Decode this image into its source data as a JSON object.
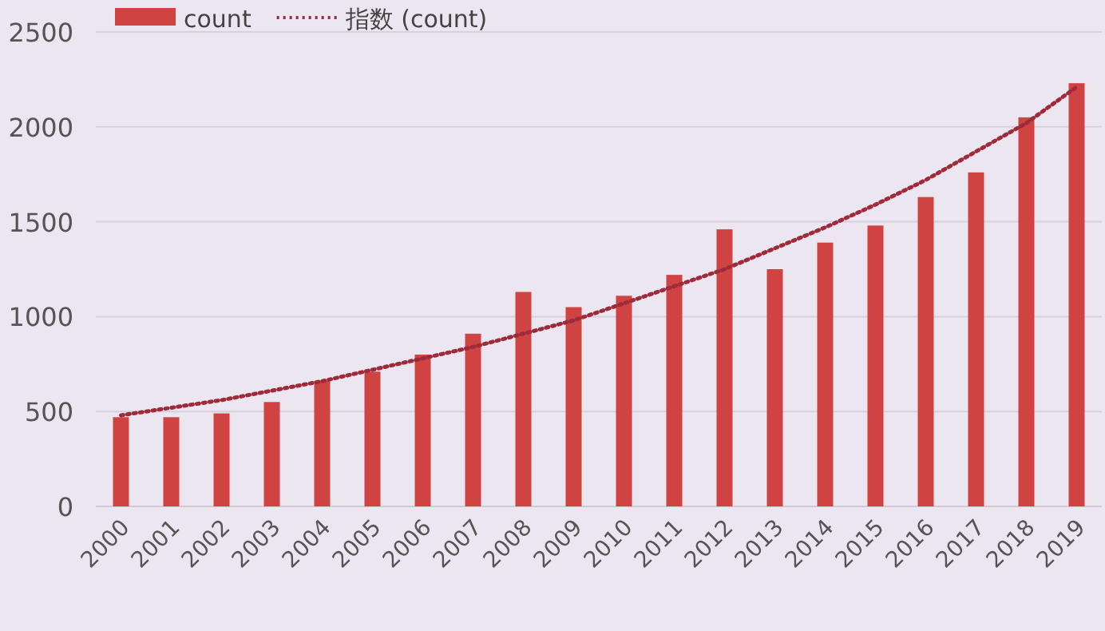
{
  "chart_data": {
    "type": "bar",
    "categories": [
      "2000",
      "2001",
      "2002",
      "2003",
      "2004",
      "2005",
      "2006",
      "2007",
      "2008",
      "2009",
      "2010",
      "2011",
      "2012",
      "2013",
      "2014",
      "2015",
      "2016",
      "2017",
      "2018",
      "2019"
    ],
    "series": [
      {
        "name": "count",
        "color": "#d04343",
        "values": [
          470,
          470,
          490,
          550,
          660,
          710,
          800,
          910,
          1130,
          1050,
          1110,
          1220,
          1460,
          1250,
          1390,
          1480,
          1630,
          1760,
          2050,
          2230
        ]
      },
      {
        "name": "指数 (count)",
        "type": "line",
        "color": "#9e2a3a",
        "line_style": "dotted",
        "values": [
          480,
          520,
          560,
          610,
          660,
          720,
          780,
          840,
          910,
          980,
          1070,
          1160,
          1250,
          1360,
          1470,
          1590,
          1720,
          1870,
          2020,
          2210
        ]
      }
    ],
    "ylim": [
      0,
      2500
    ],
    "yticks": [
      0,
      500,
      1000,
      1500,
      2000,
      2500
    ],
    "grid": "y",
    "legend": "top left"
  }
}
